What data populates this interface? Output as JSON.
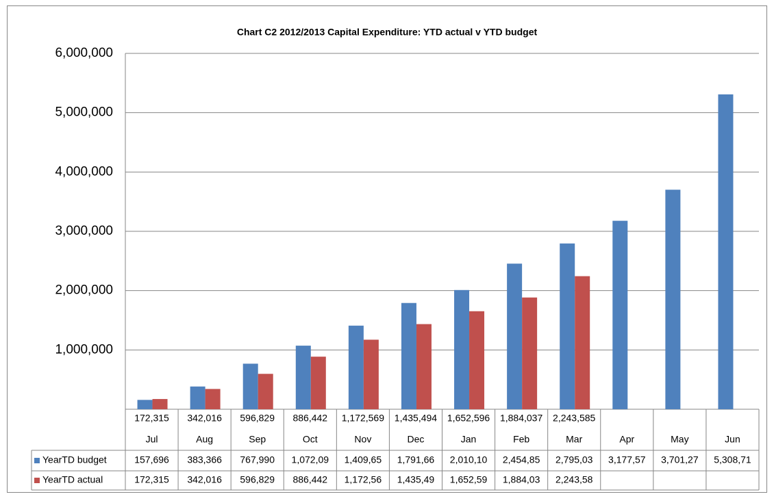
{
  "chart_data": {
    "type": "bar",
    "title": "Chart C2 2012/2013 Capital Expenditure: YTD actual v YTD budget",
    "categories": [
      "Jul",
      "Aug",
      "Sep",
      "Oct",
      "Nov",
      "Dec",
      "Jan",
      "Feb",
      "Mar",
      "Apr",
      "May",
      "Jun"
    ],
    "category_labels_top": [
      "172,315",
      "342,016",
      "596,829",
      "886,442",
      "1,172,569",
      "1,435,494",
      "1,652,596",
      "1,884,037",
      "2,243,585",
      null,
      null,
      null
    ],
    "series": [
      {
        "name": "YearTD budget",
        "color": "#4f81bd",
        "values": [
          157696,
          383366,
          767990,
          1072090,
          1409650,
          1791660,
          2010100,
          2454850,
          2795030,
          3177570,
          3701270,
          5308710
        ],
        "value_labels": [
          "157,696",
          "383,366",
          "767,990",
          "1,072,09",
          "1,409,65",
          "1,791,66",
          "2,010,10",
          "2,454,85",
          "2,795,03",
          "3,177,57",
          "3,701,27",
          "5,308,71"
        ]
      },
      {
        "name": "YearTD actual",
        "color": "#c0504d",
        "values": [
          172315,
          342016,
          596829,
          886442,
          1172569,
          1435494,
          1652596,
          1884037,
          2243585,
          null,
          null,
          null
        ],
        "value_labels": [
          "172,315",
          "342,016",
          "596,829",
          "886,442",
          "1,172,56",
          "1,435,49",
          "1,652,59",
          "1,884,03",
          "2,243,58",
          null,
          null,
          null
        ]
      }
    ],
    "ylim": [
      0,
      6000000
    ],
    "yticks": [
      {
        "value": 1000000,
        "label": "1,000,000"
      },
      {
        "value": 2000000,
        "label": "2,000,000"
      },
      {
        "value": 3000000,
        "label": "3,000,000"
      },
      {
        "value": 4000000,
        "label": "4,000,000"
      },
      {
        "value": 5000000,
        "label": "5,000,000"
      },
      {
        "value": 6000000,
        "label": "6,000,000"
      }
    ],
    "grid": true
  }
}
